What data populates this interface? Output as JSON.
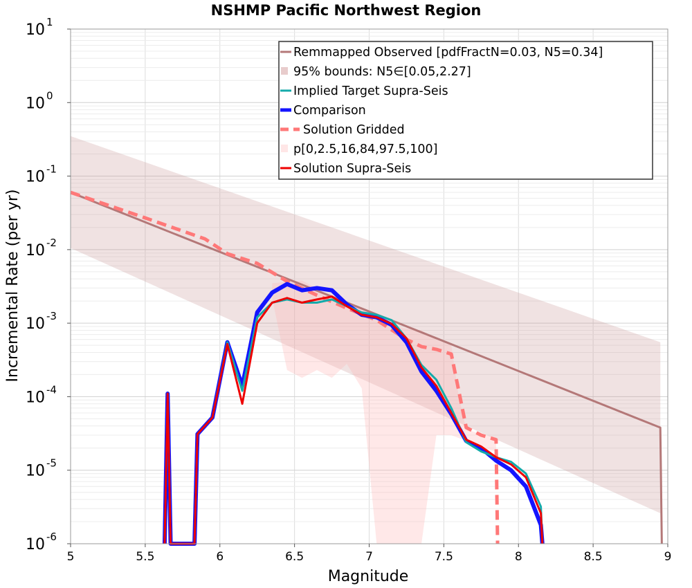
{
  "chart_data": {
    "type": "line",
    "title": "NSHMP Pacific Northwest Region",
    "xlabel": "Magnitude",
    "ylabel": "Incremental Rate (per yr)",
    "xlim": [
      5,
      9
    ],
    "ylim": [
      1e-06,
      10
    ],
    "yscale": "log",
    "grid": true,
    "legend_position": "top-right",
    "x_ticks": [
      5,
      5.5,
      6,
      6.5,
      7,
      7.5,
      8,
      8.5,
      9
    ],
    "x_tick_labels": [
      "5",
      "5.5",
      "6",
      "6.5",
      "7",
      "7.5",
      "8",
      "8.5",
      "9"
    ],
    "y_ticks": [
      {
        "value": 1e-06,
        "base": "10",
        "exp": "-6"
      },
      {
        "value": 1e-05,
        "base": "10",
        "exp": "-5"
      },
      {
        "value": 0.0001,
        "base": "10",
        "exp": "-4"
      },
      {
        "value": 0.001,
        "base": "10",
        "exp": "-3"
      },
      {
        "value": 0.01,
        "base": "10",
        "exp": "-2"
      },
      {
        "value": 0.1,
        "base": "10",
        "exp": "-1"
      },
      {
        "value": 1,
        "base": "10",
        "exp": "0"
      },
      {
        "value": 10,
        "base": "10",
        "exp": "1"
      }
    ],
    "bands": [
      {
        "name": "95% bounds: N5∈[0.05,2.27]",
        "color": "#c89696",
        "opacity": 0.28,
        "upper": [
          [
            5.0,
            0.35
          ],
          [
            8.95,
            0.00055
          ]
        ],
        "lower": [
          [
            5.0,
            0.0105
          ],
          [
            8.95,
            2.6e-06
          ]
        ]
      },
      {
        "name": "p[0,2.5,16,84,97.5,100]",
        "color": "#ffb4b4",
        "opacity": 0.3,
        "upper": [
          [
            6.35,
            0.0035
          ],
          [
            6.55,
            0.0038
          ],
          [
            6.75,
            0.0023
          ],
          [
            6.95,
            0.0016
          ],
          [
            7.15,
            0.0009
          ],
          [
            7.35,
            0.0008
          ],
          [
            7.45,
            0.0006
          ],
          [
            7.55,
            0.0005
          ],
          [
            7.6,
            0.0001
          ],
          [
            7.65,
            3.6e-05
          ],
          [
            7.75,
            3.1e-05
          ],
          [
            7.85,
            2.8e-05
          ]
        ],
        "lower": [
          [
            6.35,
            0.0022
          ],
          [
            6.45,
            0.00023
          ],
          [
            6.55,
            0.00018
          ],
          [
            6.65,
            0.00023
          ],
          [
            6.75,
            0.00018
          ],
          [
            6.85,
            0.00028
          ],
          [
            6.95,
            0.00013
          ],
          [
            7.05,
            1e-06
          ],
          [
            7.35,
            1e-06
          ],
          [
            7.45,
            3e-05
          ],
          [
            7.55,
            3e-05
          ],
          [
            7.65,
            2.5e-05
          ],
          [
            7.75,
            2e-05
          ],
          [
            7.85,
            1.8e-05
          ]
        ]
      }
    ],
    "series": [
      {
        "name": "Remmapped Observed [pdfFractN=0.03, N5=0.34]",
        "color": "#b47878",
        "width": 3,
        "dash": "",
        "points": [
          [
            5.0,
            0.06
          ],
          [
            8.95,
            3.8e-05
          ],
          [
            8.96,
            1e-06
          ]
        ]
      },
      {
        "name": "Solution Gridded",
        "color": "#ff7878",
        "width": 5,
        "dash": "14 8",
        "points": [
          [
            5.0,
            0.06
          ],
          [
            5.5,
            0.027
          ],
          [
            5.9,
            0.014
          ],
          [
            6.05,
            0.0088
          ],
          [
            6.25,
            0.0065
          ],
          [
            6.45,
            0.0037
          ],
          [
            6.65,
            0.0024
          ],
          [
            6.85,
            0.0016
          ],
          [
            7.05,
            0.0011
          ],
          [
            7.25,
            0.0006
          ],
          [
            7.35,
            0.00048
          ],
          [
            7.45,
            0.00044
          ],
          [
            7.55,
            0.00038
          ],
          [
            7.65,
            3.8e-05
          ],
          [
            7.75,
            3e-05
          ],
          [
            7.85,
            2.6e-05
          ],
          [
            7.86,
            1e-06
          ]
        ]
      },
      {
        "name": "Comparison",
        "color": "#1414ff",
        "width": 6,
        "dash": "",
        "points": [
          [
            5.63,
            1e-06
          ],
          [
            5.65,
            0.00011
          ],
          [
            5.67,
            1e-06
          ],
          [
            5.83,
            1e-06
          ],
          [
            5.85,
            3.1e-05
          ],
          [
            5.95,
            5.2e-05
          ],
          [
            6.05,
            0.00055
          ],
          [
            6.15,
            0.00014
          ],
          [
            6.25,
            0.0014
          ],
          [
            6.35,
            0.0026
          ],
          [
            6.45,
            0.0034
          ],
          [
            6.55,
            0.0028
          ],
          [
            6.65,
            0.003
          ],
          [
            6.75,
            0.0028
          ],
          [
            6.85,
            0.0018
          ],
          [
            6.95,
            0.0013
          ],
          [
            7.05,
            0.0012
          ],
          [
            7.15,
            0.00095
          ],
          [
            7.25,
            0.00055
          ],
          [
            7.35,
            0.00022
          ],
          [
            7.45,
            0.00012
          ],
          [
            7.55,
            5.8e-05
          ],
          [
            7.65,
            2.5e-05
          ],
          [
            7.75,
            2e-05
          ],
          [
            7.85,
            1.35e-05
          ],
          [
            7.95,
            1e-05
          ],
          [
            8.05,
            6e-06
          ],
          [
            8.15,
            1.8e-06
          ],
          [
            8.16,
            1e-06
          ]
        ]
      },
      {
        "name": "Implied Target Supra-Seis",
        "color": "#14aaaa",
        "width": 3,
        "dash": "",
        "points": [
          [
            5.63,
            1e-06
          ],
          [
            5.65,
            0.00011
          ],
          [
            5.67,
            1e-06
          ],
          [
            5.83,
            1e-06
          ],
          [
            5.85,
            3.1e-05
          ],
          [
            5.95,
            5.2e-05
          ],
          [
            6.05,
            0.00055
          ],
          [
            6.15,
            0.00012
          ],
          [
            6.25,
            0.0012
          ],
          [
            6.35,
            0.0019
          ],
          [
            6.45,
            0.0021
          ],
          [
            6.55,
            0.0019
          ],
          [
            6.65,
            0.0019
          ],
          [
            6.75,
            0.0021
          ],
          [
            6.85,
            0.0017
          ],
          [
            6.95,
            0.0014
          ],
          [
            7.05,
            0.0013
          ],
          [
            7.15,
            0.0011
          ],
          [
            7.25,
            0.00062
          ],
          [
            7.35,
            0.00027
          ],
          [
            7.45,
            0.00017
          ],
          [
            7.55,
            7e-05
          ],
          [
            7.65,
            2.4e-05
          ],
          [
            7.75,
            1.8e-05
          ],
          [
            7.85,
            1.5e-05
          ],
          [
            7.95,
            1.3e-05
          ],
          [
            8.05,
            9e-06
          ],
          [
            8.15,
            3.2e-06
          ],
          [
            8.16,
            1e-06
          ]
        ]
      },
      {
        "name": "Solution Supra-Seis",
        "color": "#ee0000",
        "width": 3,
        "dash": "",
        "points": [
          [
            5.63,
            1e-06
          ],
          [
            5.65,
            0.00011
          ],
          [
            5.67,
            1e-06
          ],
          [
            5.83,
            1e-06
          ],
          [
            5.85,
            3.1e-05
          ],
          [
            5.95,
            5.2e-05
          ],
          [
            6.05,
            0.00052
          ],
          [
            6.15,
            8e-05
          ],
          [
            6.25,
            0.001
          ],
          [
            6.35,
            0.0019
          ],
          [
            6.45,
            0.0022
          ],
          [
            6.55,
            0.0019
          ],
          [
            6.65,
            0.0021
          ],
          [
            6.75,
            0.0023
          ],
          [
            6.85,
            0.0017
          ],
          [
            6.95,
            0.0013
          ],
          [
            7.05,
            0.0012
          ],
          [
            7.15,
            0.00098
          ],
          [
            7.25,
            0.00062
          ],
          [
            7.35,
            0.00025
          ],
          [
            7.45,
            0.00014
          ],
          [
            7.55,
            6e-05
          ],
          [
            7.65,
            2.6e-05
          ],
          [
            7.75,
            2.1e-05
          ],
          [
            7.85,
            1.5e-05
          ],
          [
            7.95,
            1.2e-05
          ],
          [
            8.05,
            8e-06
          ],
          [
            8.15,
            2.6e-06
          ],
          [
            8.16,
            1e-06
          ]
        ]
      }
    ],
    "legend": [
      {
        "label": "Remmapped Observed [pdfFractN=0.03, N5=0.34]",
        "kind": "line",
        "color": "#b47878",
        "width": 3,
        "dash": ""
      },
      {
        "label": "95% bounds: N5∈[0.05,2.27]",
        "kind": "patch",
        "color": "#e8cccc"
      },
      {
        "label": "Implied Target Supra-Seis",
        "kind": "line",
        "color": "#14aaaa",
        "width": 3,
        "dash": ""
      },
      {
        "label": "Comparison",
        "kind": "line",
        "color": "#1414ff",
        "width": 5,
        "dash": ""
      },
      {
        "label": "Solution Gridded",
        "kind": "line",
        "color": "#ff7878",
        "width": 5,
        "dash": "12 7"
      },
      {
        "label": "p[0,2.5,16,84,97.5,100]",
        "kind": "patch",
        "color": "#ffe6e6"
      },
      {
        "label": "Solution Supra-Seis",
        "kind": "line",
        "color": "#ee0000",
        "width": 3,
        "dash": ""
      }
    ]
  }
}
